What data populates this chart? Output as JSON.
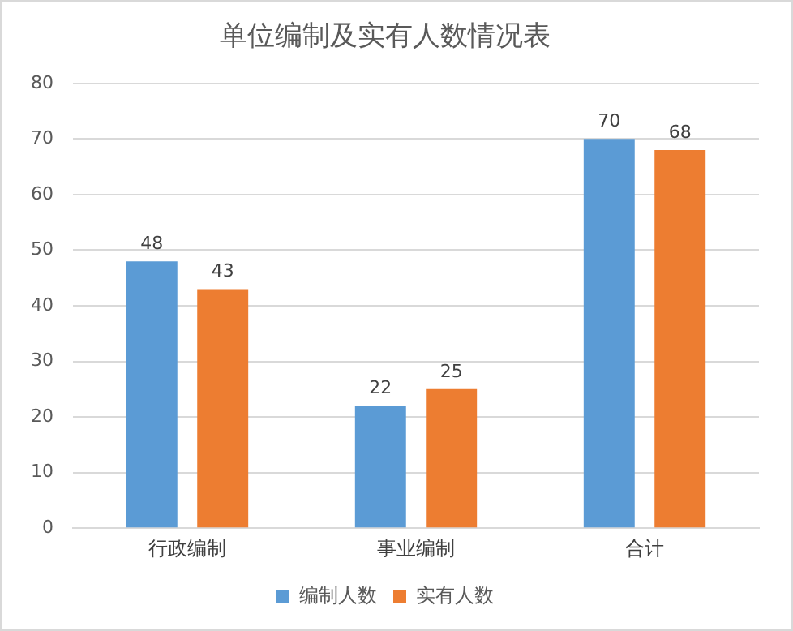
{
  "chart_data": {
    "type": "bar",
    "title": "单位编制及实有人数情况表",
    "categories": [
      "行政编制",
      "事业编制",
      "合计"
    ],
    "series": [
      {
        "name": "编制人数",
        "color": "#5b9bd5",
        "values": [
          48,
          22,
          70
        ]
      },
      {
        "name": "实有人数",
        "color": "#ed7d31",
        "values": [
          43,
          25,
          68
        ]
      }
    ],
    "ylim": [
      0,
      80
    ],
    "yticks": [
      0,
      10,
      20,
      30,
      40,
      50,
      60,
      70,
      80
    ],
    "grid": "y",
    "legend": "bottom",
    "data_labels": true
  }
}
